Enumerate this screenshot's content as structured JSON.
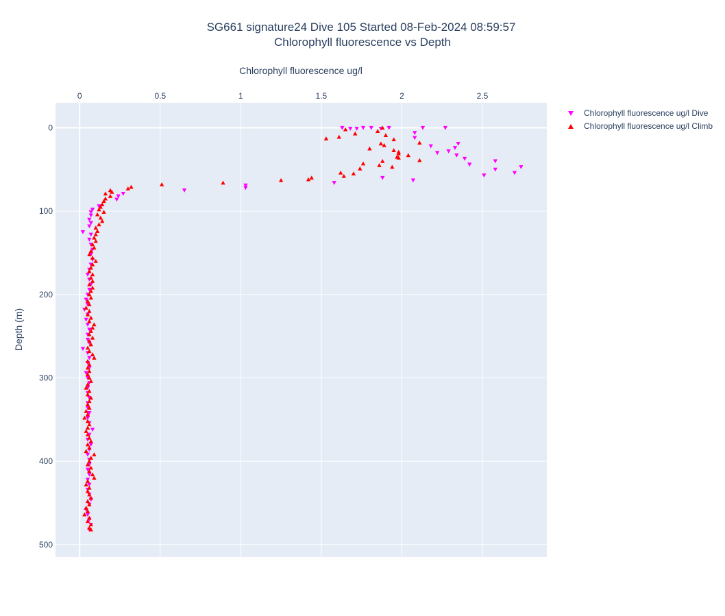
{
  "chart_data": {
    "type": "scatter",
    "title": "SG661 signature24 Dive 105 Started 08-Feb-2024 08:59:57",
    "subtitle": "Chlorophyll fluorescence vs Depth",
    "xlabel": "Chlorophyll fluorescence ug/l",
    "ylabel": "Depth (m)",
    "x_axis_position": "top",
    "y_axis_reversed": true,
    "xlim": [
      -0.15,
      2.9
    ],
    "ylim": [
      515,
      -30
    ],
    "x_ticks": [
      0,
      0.5,
      1,
      1.5,
      2,
      2.5
    ],
    "x_tick_labels": [
      "0",
      "0.5",
      "1",
      "1.5",
      "2",
      "2.5"
    ],
    "y_ticks": [
      0,
      100,
      200,
      300,
      400,
      500
    ],
    "y_tick_labels": [
      "0",
      "100",
      "200",
      "300",
      "400",
      "500"
    ],
    "grid": true,
    "legend_position": "top-right",
    "plot_background": "#e5ecf6",
    "series": [
      {
        "name": "Chlorophyll fluorescence ug/l Dive",
        "marker": "triangle-down",
        "color": "#ff00ff",
        "points": [
          [
            1.63,
            0
          ],
          [
            1.68,
            1
          ],
          [
            1.72,
            1
          ],
          [
            1.76,
            0
          ],
          [
            1.81,
            0
          ],
          [
            1.87,
            1
          ],
          [
            1.92,
            0
          ],
          [
            2.13,
            0
          ],
          [
            2.27,
            0
          ],
          [
            2.08,
            6
          ],
          [
            2.08,
            12
          ],
          [
            2.18,
            22
          ],
          [
            2.22,
            30
          ],
          [
            2.29,
            28
          ],
          [
            2.33,
            24
          ],
          [
            2.35,
            19
          ],
          [
            2.34,
            33
          ],
          [
            2.39,
            37
          ],
          [
            2.42,
            44
          ],
          [
            2.58,
            40
          ],
          [
            2.58,
            50
          ],
          [
            2.74,
            47
          ],
          [
            2.7,
            54
          ],
          [
            2.51,
            57
          ],
          [
            2.07,
            63
          ],
          [
            1.88,
            60
          ],
          [
            1.58,
            66
          ],
          [
            1.03,
            69
          ],
          [
            1.03,
            72
          ],
          [
            0.65,
            75
          ],
          [
            0.27,
            79
          ],
          [
            0.24,
            82
          ],
          [
            0.23,
            86
          ],
          [
            0.12,
            94
          ],
          [
            0.08,
            98
          ],
          [
            0.07,
            101
          ],
          [
            0.07,
            105
          ],
          [
            0.06,
            110
          ],
          [
            0.07,
            114
          ],
          [
            0.06,
            118
          ],
          [
            0.02,
            125
          ],
          [
            0.07,
            128
          ],
          [
            0.06,
            134
          ],
          [
            0.07,
            140
          ],
          [
            0.08,
            146
          ],
          [
            0.07,
            152
          ],
          [
            0.08,
            158
          ],
          [
            0.07,
            164
          ],
          [
            0.06,
            170
          ],
          [
            0.05,
            176
          ],
          [
            0.06,
            182
          ],
          [
            0.07,
            188
          ],
          [
            0.06,
            194
          ],
          [
            0.05,
            200
          ],
          [
            0.04,
            206
          ],
          [
            0.05,
            212
          ],
          [
            0.03,
            218
          ],
          [
            0.05,
            224
          ],
          [
            0.04,
            230
          ],
          [
            0.05,
            236
          ],
          [
            0.06,
            242
          ],
          [
            0.05,
            248
          ],
          [
            0.05,
            254
          ],
          [
            0.06,
            258
          ],
          [
            0.02,
            265
          ],
          [
            0.05,
            270
          ],
          [
            0.06,
            276
          ],
          [
            0.05,
            282
          ],
          [
            0.06,
            288
          ],
          [
            0.04,
            294
          ],
          [
            0.05,
            300
          ],
          [
            0.06,
            306
          ],
          [
            0.05,
            312
          ],
          [
            0.05,
            318
          ],
          [
            0.06,
            324
          ],
          [
            0.05,
            330
          ],
          [
            0.05,
            336
          ],
          [
            0.06,
            342
          ],
          [
            0.05,
            348
          ],
          [
            0.06,
            354
          ],
          [
            0.08,
            362
          ],
          [
            0.06,
            368
          ],
          [
            0.05,
            374
          ],
          [
            0.07,
            380
          ],
          [
            0.06,
            386
          ],
          [
            0.05,
            392
          ],
          [
            0.06,
            398
          ],
          [
            0.06,
            404
          ],
          [
            0.05,
            410
          ],
          [
            0.06,
            416
          ],
          [
            0.05,
            422
          ],
          [
            0.06,
            428
          ],
          [
            0.05,
            434
          ],
          [
            0.06,
            440
          ],
          [
            0.07,
            446
          ],
          [
            0.06,
            452
          ],
          [
            0.04,
            458
          ],
          [
            0.05,
            464
          ],
          [
            0.06,
            470
          ],
          [
            0.07,
            476
          ],
          [
            0.06,
            482
          ]
        ]
      },
      {
        "name": "Chlorophyll fluorescence ug/l Climb",
        "marker": "triangle-up",
        "color": "#ff0000",
        "points": [
          [
            1.65,
            2
          ],
          [
            1.88,
            0
          ],
          [
            1.85,
            4
          ],
          [
            1.71,
            7
          ],
          [
            1.9,
            9
          ],
          [
            1.61,
            11
          ],
          [
            1.53,
            13
          ],
          [
            1.95,
            14
          ],
          [
            1.87,
            19
          ],
          [
            1.89,
            21
          ],
          [
            2.11,
            18
          ],
          [
            1.8,
            25
          ],
          [
            1.95,
            27
          ],
          [
            1.98,
            29
          ],
          [
            1.98,
            31
          ],
          [
            2.04,
            33
          ],
          [
            1.97,
            35
          ],
          [
            1.98,
            36
          ],
          [
            1.88,
            40
          ],
          [
            2.11,
            39
          ],
          [
            1.76,
            43
          ],
          [
            1.86,
            45
          ],
          [
            1.94,
            47
          ],
          [
            1.74,
            49
          ],
          [
            1.7,
            55
          ],
          [
            1.62,
            54
          ],
          [
            1.64,
            58
          ],
          [
            1.44,
            60
          ],
          [
            1.42,
            62
          ],
          [
            1.25,
            63
          ],
          [
            0.89,
            66
          ],
          [
            0.51,
            68
          ],
          [
            0.32,
            71
          ],
          [
            0.3,
            73
          ],
          [
            0.19,
            75
          ],
          [
            0.2,
            77
          ],
          [
            0.16,
            79
          ],
          [
            0.19,
            82
          ],
          [
            0.16,
            85
          ],
          [
            0.15,
            88
          ],
          [
            0.14,
            92
          ],
          [
            0.13,
            95
          ],
          [
            0.12,
            98
          ],
          [
            0.15,
            101
          ],
          [
            0.11,
            104
          ],
          [
            0.13,
            108
          ],
          [
            0.14,
            112
          ],
          [
            0.12,
            116
          ],
          [
            0.1,
            120
          ],
          [
            0.11,
            124
          ],
          [
            0.1,
            128
          ],
          [
            0.09,
            132
          ],
          [
            0.1,
            136
          ],
          [
            0.08,
            140
          ],
          [
            0.09,
            144
          ],
          [
            0.07,
            148
          ],
          [
            0.06,
            152
          ],
          [
            0.08,
            156
          ],
          [
            0.1,
            160
          ],
          [
            0.08,
            164
          ],
          [
            0.07,
            168
          ],
          [
            0.06,
            172
          ],
          [
            0.08,
            176
          ],
          [
            0.07,
            180
          ],
          [
            0.08,
            184
          ],
          [
            0.06,
            188
          ],
          [
            0.08,
            192
          ],
          [
            0.07,
            196
          ],
          [
            0.06,
            200
          ],
          [
            0.07,
            204
          ],
          [
            0.05,
            208
          ],
          [
            0.06,
            212
          ],
          [
            0.04,
            216
          ],
          [
            0.06,
            220
          ],
          [
            0.05,
            224
          ],
          [
            0.07,
            228
          ],
          [
            0.06,
            232
          ],
          [
            0.09,
            236
          ],
          [
            0.08,
            240
          ],
          [
            0.07,
            244
          ],
          [
            0.06,
            248
          ],
          [
            0.08,
            252
          ],
          [
            0.06,
            256
          ],
          [
            0.07,
            260
          ],
          [
            0.05,
            264
          ],
          [
            0.06,
            268
          ],
          [
            0.08,
            272
          ],
          [
            0.09,
            276
          ],
          [
            0.05,
            280
          ],
          [
            0.06,
            284
          ],
          [
            0.05,
            288
          ],
          [
            0.06,
            292
          ],
          [
            0.05,
            296
          ],
          [
            0.06,
            300
          ],
          [
            0.07,
            304
          ],
          [
            0.05,
            308
          ],
          [
            0.04,
            312
          ],
          [
            0.06,
            316
          ],
          [
            0.05,
            320
          ],
          [
            0.07,
            324
          ],
          [
            0.06,
            328
          ],
          [
            0.05,
            332
          ],
          [
            0.06,
            336
          ],
          [
            0.04,
            340
          ],
          [
            0.05,
            344
          ],
          [
            0.03,
            348
          ],
          [
            0.05,
            352
          ],
          [
            0.06,
            356
          ],
          [
            0.05,
            360
          ],
          [
            0.04,
            364
          ],
          [
            0.05,
            368
          ],
          [
            0.06,
            372
          ],
          [
            0.07,
            376
          ],
          [
            0.05,
            380
          ],
          [
            0.06,
            384
          ],
          [
            0.04,
            388
          ],
          [
            0.09,
            392
          ],
          [
            0.07,
            396
          ],
          [
            0.06,
            400
          ],
          [
            0.05,
            404
          ],
          [
            0.07,
            408
          ],
          [
            0.06,
            412
          ],
          [
            0.08,
            416
          ],
          [
            0.09,
            420
          ],
          [
            0.05,
            424
          ],
          [
            0.04,
            428
          ],
          [
            0.06,
            432
          ],
          [
            0.05,
            436
          ],
          [
            0.06,
            440
          ],
          [
            0.07,
            444
          ],
          [
            0.05,
            448
          ],
          [
            0.06,
            452
          ],
          [
            0.04,
            456
          ],
          [
            0.05,
            460
          ],
          [
            0.03,
            464
          ],
          [
            0.06,
            468
          ],
          [
            0.05,
            472
          ],
          [
            0.07,
            476
          ],
          [
            0.06,
            480
          ],
          [
            0.07,
            482
          ]
        ]
      }
    ]
  }
}
